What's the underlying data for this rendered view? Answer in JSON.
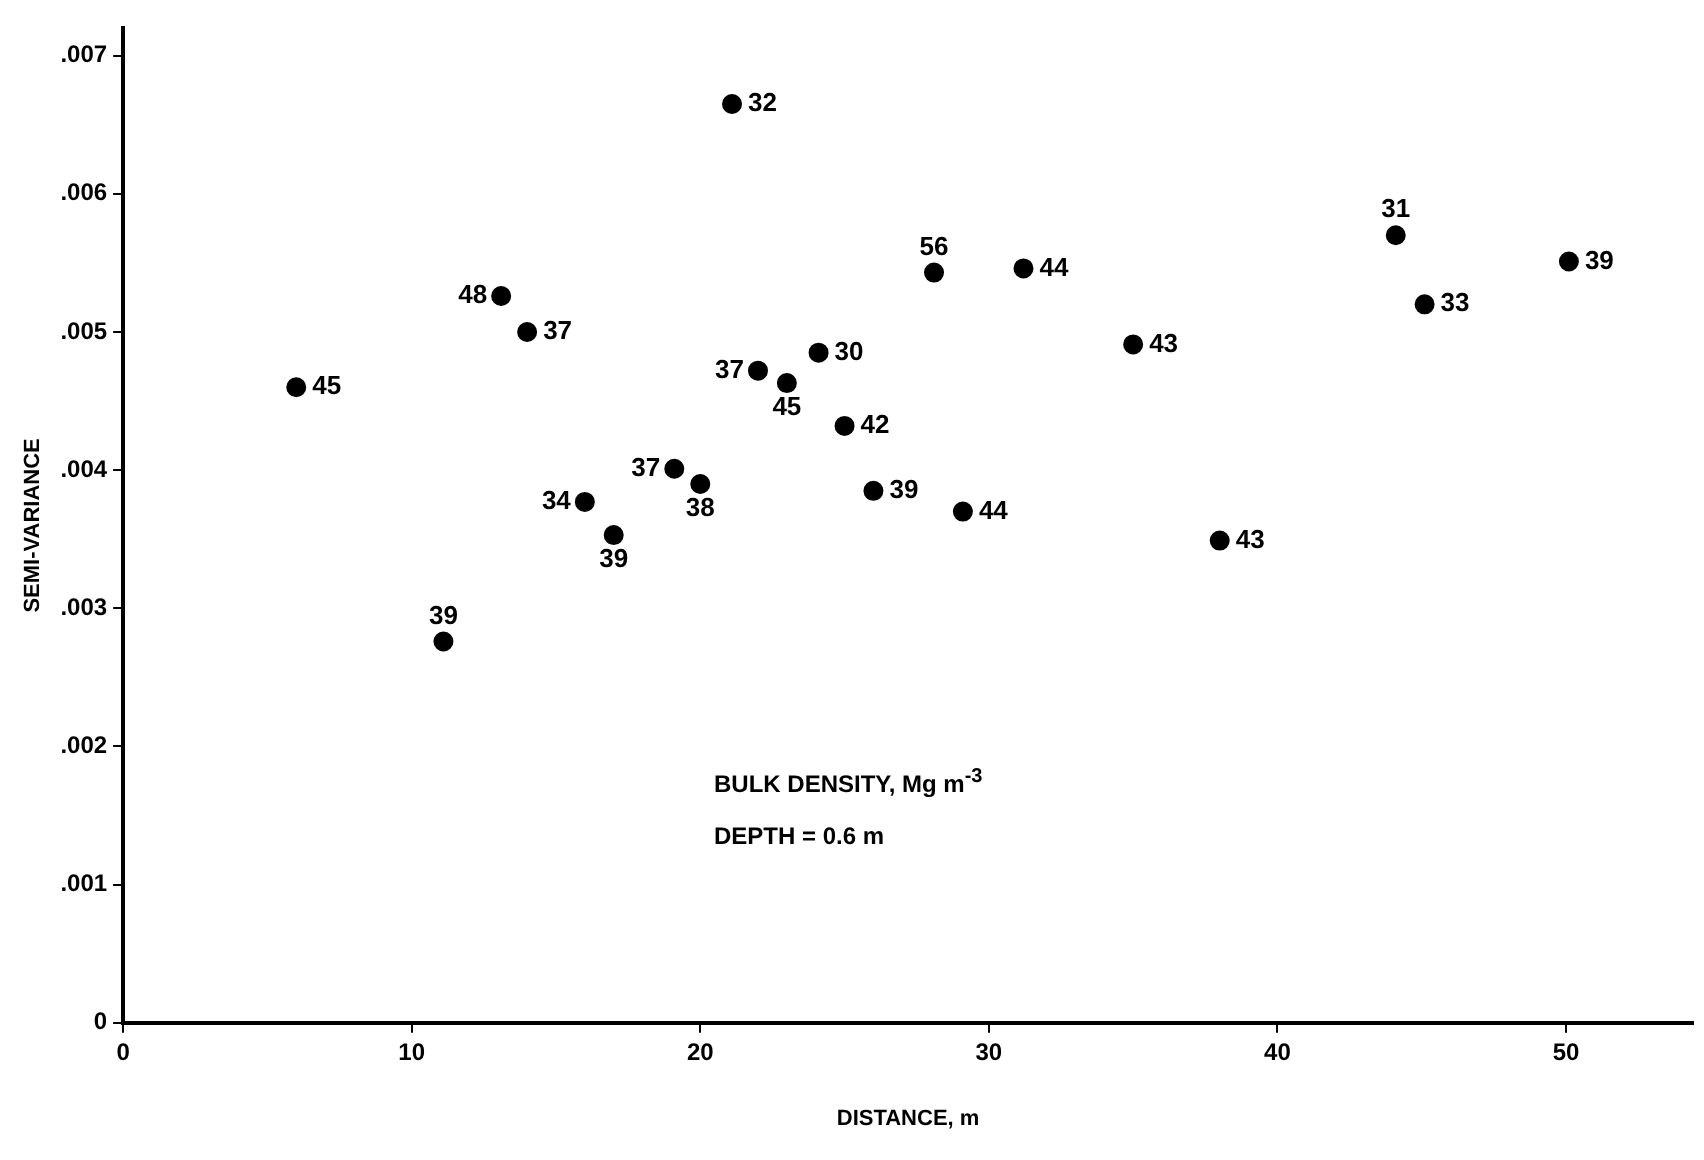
{
  "chart_data": {
    "type": "scatter",
    "xlabel": "DISTANCE, m",
    "ylabel": "SEMI-VARIANCE",
    "annotations": [
      "BULK DENSITY, Mg m$^{-3}$",
      "DEPTH = 0.6 m",
      {
        "text": "45",
        "x": 6,
        "y": 0.0046
      },
      {
        "text": "48",
        "x": 13.1,
        "y": 0.00526
      },
      {
        "text": "37",
        "x": 14,
        "y": 0.005
      },
      {
        "text": "32",
        "x": 21.1,
        "y": 0.00665
      },
      {
        "text": "37",
        "x": 22,
        "y": 0.00472
      },
      {
        "text": "45",
        "x": 23,
        "y": 0.00463
      },
      {
        "text": "30",
        "x": 24.1,
        "y": 0.00485
      },
      {
        "text": "37",
        "x": 19.1,
        "y": 0.00401
      },
      {
        "text": "38",
        "x": 20,
        "y": 0.0039
      },
      {
        "text": "34",
        "x": 16,
        "y": 0.00377
      },
      {
        "text": "39",
        "x": 17,
        "y": 0.00353
      },
      {
        "text": "39",
        "x": 11.1,
        "y": 0.00276
      },
      {
        "text": "42",
        "x": 25,
        "y": 0.00432
      },
      {
        "text": "39",
        "x": 26,
        "y": 0.00385
      },
      {
        "text": "44",
        "x": 29.1,
        "y": 0.0037
      },
      {
        "text": "56",
        "x": 28.1,
        "y": 0.00543
      },
      {
        "text": "44",
        "x": 31.2,
        "y": 0.00546
      },
      {
        "text": "43",
        "x": 35,
        "y": 0.00491
      },
      {
        "text": "43",
        "x": 38,
        "y": 0.00349
      },
      {
        "text": "31",
        "x": 44.1,
        "y": 0.0057
      },
      {
        "text": "33",
        "x": 45.1,
        "y": 0.0052
      },
      {
        "text": "39",
        "x": 50.1,
        "y": 0.00551
      }
    ],
    "series": [
      {
        "color": "#000000",
        "x": [
          6,
          13.1,
          14,
          21.1,
          22,
          23,
          24.1,
          19.1,
          20,
          16,
          17,
          11.1,
          25,
          26,
          29.1,
          28.1,
          31.2,
          35,
          38,
          44.1,
          45.1,
          50.1
        ],
        "values": [
          0.0046,
          0.00526,
          0.005,
          0.00665,
          0.00472,
          0.00463,
          0.00485,
          0.00401,
          0.0039,
          0.00377,
          0.00353,
          0.00276,
          0.00432,
          0.00385,
          0.0037,
          0.00543,
          0.00546,
          0.00491,
          0.00349,
          0.0057,
          0.0052,
          0.00551
        ]
      }
    ],
    "marker": "circle",
    "grid": false,
    "legend": false,
    "xlim": [
      0,
      54.4
    ],
    "xticks": [
      0,
      10,
      20,
      30,
      40,
      50
    ],
    "ylim": [
      0,
      0.0072
    ],
    "yticks": [
      0,
      {
        "value": 0.001,
        "label": ".001"
      },
      {
        "value": 0.002,
        "label": ".002"
      },
      {
        "value": 0.003,
        "label": ".003"
      },
      {
        "value": 0.004,
        "label": ".004"
      },
      {
        "value": 0.005,
        "label": ".005"
      },
      {
        "value": 0.006,
        "label": ".006"
      },
      {
        "value": 0.007,
        "label": ".007"
      }
    ]
  }
}
